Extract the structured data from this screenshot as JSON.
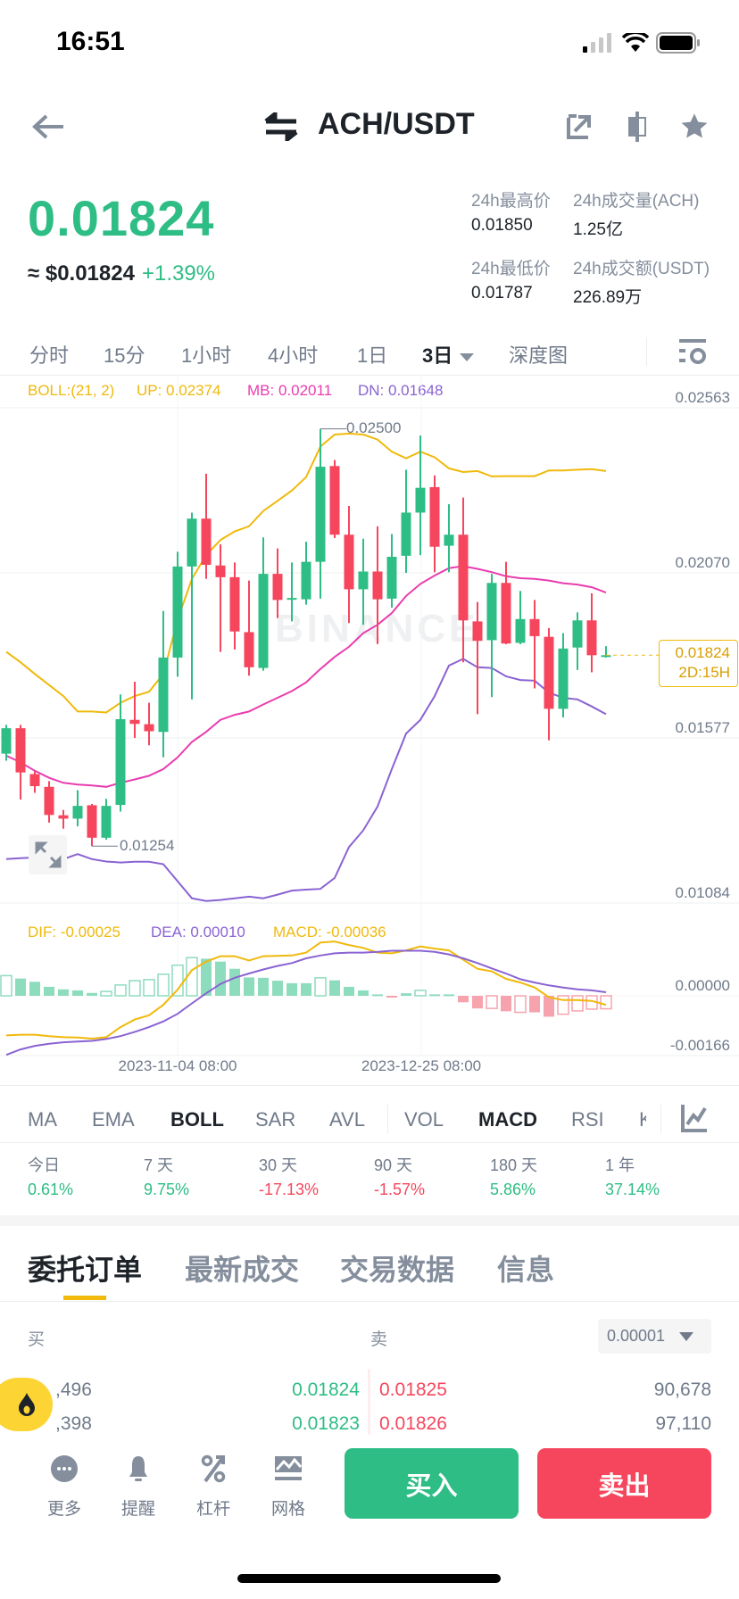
{
  "status_bar": {
    "time": "16:51"
  },
  "header": {
    "title": "ACH/USDT",
    "icons": [
      "back-arrow-icon",
      "swap-icon",
      "share-icon",
      "candle-icon",
      "star-icon"
    ]
  },
  "ticker": {
    "last_price": "0.01824",
    "usd_price": "≈ $0.01824",
    "change": "+1.39%",
    "stats": [
      {
        "label": "24h最高价",
        "value": "0.01850"
      },
      {
        "label": "24h成交量(ACH)",
        "value": "1.25亿"
      },
      {
        "label": "24h最低价",
        "value": "0.01787"
      },
      {
        "label": "24h成交额(USDT)",
        "value": "226.89万"
      }
    ]
  },
  "intervals": {
    "items": [
      "分时",
      "15分",
      "1小时",
      "4小时",
      "1日",
      "3日",
      "深度图"
    ],
    "active": "3日"
  },
  "colors": {
    "up": "#2EBD85",
    "down": "#F6465D",
    "boll_up": "#F0B90B",
    "boll_mb": "#E93CB0",
    "boll_dn": "#8A63D2",
    "accent": "#FCD535"
  },
  "chart_data": [
    {
      "type": "candlestick",
      "title": "",
      "legend": {
        "boll": "BOLL:(21, 2)",
        "up": "UP: 0.02374",
        "mb": "MB: 0.02011",
        "dn": "DN: 0.01648"
      },
      "y_ticks": [
        "0.02563",
        "0.02070",
        "0.01577",
        "0.01084"
      ],
      "ylim": [
        0.01084,
        0.02563
      ],
      "x_ticks": [
        "2023-11-04 08:00",
        "2023-12-25 08:00"
      ],
      "high_label": "0.02500",
      "low_label": "0.01254",
      "last_price_tag": "0.01824",
      "countdown": "2D:15H",
      "watermark": "BINANCE",
      "ohlc": [
        [
          0.0153,
          0.01616,
          0.01509,
          0.01606
        ],
        [
          0.01606,
          0.01616,
          0.01393,
          0.01474
        ],
        [
          0.01469,
          0.01479,
          0.01413,
          0.01433
        ],
        [
          0.01431,
          0.01448,
          0.01324,
          0.01347
        ],
        [
          0.01346,
          0.01362,
          0.01306,
          0.01336
        ],
        [
          0.01336,
          0.01421,
          0.01313,
          0.01374
        ],
        [
          0.01376,
          0.0138,
          0.01254,
          0.01279
        ],
        [
          0.01279,
          0.01395,
          0.01273,
          0.01374
        ],
        [
          0.01377,
          0.01707,
          0.01357,
          0.01633
        ],
        [
          0.01631,
          0.01745,
          0.01577,
          0.01619
        ],
        [
          0.01618,
          0.01682,
          0.01555,
          0.01597
        ],
        [
          0.01595,
          0.01956,
          0.01519,
          0.01817
        ],
        [
          0.01817,
          0.02133,
          0.0176,
          0.02089
        ],
        [
          0.02089,
          0.0225,
          0.01692,
          0.02232
        ],
        [
          0.02232,
          0.02366,
          0.02052,
          0.02094
        ],
        [
          0.02092,
          0.02155,
          0.01834,
          0.02057
        ],
        [
          0.02057,
          0.02101,
          0.01841,
          0.01895
        ],
        [
          0.01893,
          0.02047,
          0.01763,
          0.01788
        ],
        [
          0.01786,
          0.02176,
          0.01778,
          0.02067
        ],
        [
          0.02067,
          0.02143,
          0.01935,
          0.01989
        ],
        [
          0.01991,
          0.02101,
          0.01925,
          0.01995
        ],
        [
          0.01991,
          0.02163,
          0.01975,
          0.02103
        ],
        [
          0.02103,
          0.025,
          0.01993,
          0.02387
        ],
        [
          0.02389,
          0.02407,
          0.02174,
          0.02184
        ],
        [
          0.02184,
          0.0227,
          0.0192,
          0.02021
        ],
        [
          0.02021,
          0.02172,
          0.01915,
          0.02074
        ],
        [
          0.02074,
          0.02209,
          0.01857,
          0.01991
        ],
        [
          0.01993,
          0.02186,
          0.01966,
          0.02118
        ],
        [
          0.02121,
          0.02378,
          0.0207,
          0.0225
        ],
        [
          0.0225,
          0.0248,
          0.02123,
          0.02324
        ],
        [
          0.02326,
          0.02361,
          0.02072,
          0.02148
        ],
        [
          0.02151,
          0.02275,
          0.02072,
          0.02184
        ],
        [
          0.02184,
          0.02295,
          0.01803,
          0.01928
        ],
        [
          0.01925,
          0.01983,
          0.01648,
          0.01867
        ],
        [
          0.01869,
          0.02067,
          0.01699,
          0.0204
        ],
        [
          0.0204,
          0.02103,
          0.01857,
          0.01859
        ],
        [
          0.01861,
          0.02016,
          0.01857,
          0.01932
        ],
        [
          0.01932,
          0.01989,
          0.01725,
          0.01881
        ],
        [
          0.01879,
          0.01905,
          0.0157,
          0.01664
        ],
        [
          0.01664,
          0.0189,
          0.01638,
          0.01844
        ],
        [
          0.01847,
          0.01952,
          0.0178,
          0.01928
        ],
        [
          0.01928,
          0.02009,
          0.01773,
          0.01824
        ],
        [
          0.01822,
          0.01851,
          0.01817,
          0.01824
        ]
      ],
      "boll_up": [
        0.01834,
        0.01803,
        0.01768,
        0.01735,
        0.01702,
        0.01656,
        0.01656,
        0.01653,
        0.01682,
        0.01702,
        0.01715,
        0.01768,
        0.0193,
        0.02052,
        0.02123,
        0.02168,
        0.02194,
        0.02209,
        0.02255,
        0.02285,
        0.02316,
        0.02356,
        0.02447,
        0.02483,
        0.02486,
        0.02483,
        0.02468,
        0.02432,
        0.02412,
        0.02432,
        0.02415,
        0.02382,
        0.02371,
        0.02374,
        0.02358,
        0.02359,
        0.02359,
        0.02359,
        0.02376,
        0.02376,
        0.02378,
        0.0238,
        0.02374
      ],
      "boll_mb": [
        0.01524,
        0.01504,
        0.01479,
        0.01458,
        0.01443,
        0.01438,
        0.01435,
        0.01431,
        0.01443,
        0.01453,
        0.01464,
        0.01484,
        0.01519,
        0.01565,
        0.01595,
        0.01631,
        0.01646,
        0.01656,
        0.01677,
        0.01697,
        0.01717,
        0.01743,
        0.01783,
        0.01819,
        0.01849,
        0.0189,
        0.01915,
        0.0195,
        0.02001,
        0.02037,
        0.02062,
        0.02084,
        0.0209,
        0.02082,
        0.02072,
        0.0206,
        0.02054,
        0.02052,
        0.02047,
        0.02039,
        0.02035,
        0.02027,
        0.02011
      ],
      "boll_dn": [
        0.01215,
        0.01218,
        0.0122,
        0.0122,
        0.01215,
        0.0123,
        0.01215,
        0.01208,
        0.01205,
        0.01207,
        0.01207,
        0.012,
        0.01149,
        0.01098,
        0.0109,
        0.01093,
        0.01098,
        0.01103,
        0.01098,
        0.01109,
        0.01121,
        0.01124,
        0.01126,
        0.01159,
        0.01251,
        0.01301,
        0.01372,
        0.01484,
        0.0159,
        0.01631,
        0.01702,
        0.01793,
        0.01813,
        0.01788,
        0.01786,
        0.01761,
        0.0175,
        0.01748,
        0.01712,
        0.01697,
        0.01692,
        0.01671,
        0.01648
      ]
    },
    {
      "type": "macd",
      "legend": {
        "dif": "DIF: -0.00025",
        "dea": "DEA: 0.00010",
        "macd": "MACD: -0.00036"
      },
      "y_ticks": [
        "0.00000",
        "-0.00166"
      ],
      "hist": [
        0.00056,
        0.00048,
        0.00039,
        0.00025,
        0.00018,
        0.00015,
        8e-05,
        0.00012,
        0.0003,
        0.00042,
        0.00045,
        0.0006,
        0.00085,
        0.00106,
        0.00103,
        0.00095,
        0.00075,
        0.00051,
        0.0005,
        0.00042,
        0.00035,
        0.00035,
        0.0005,
        0.00043,
        0.00025,
        0.00015,
        4e-05,
        -3e-05,
        7e-05,
        0.00015,
        4e-05,
        4e-05,
        -0.00018,
        -0.00035,
        -0.00035,
        -0.00043,
        -0.00046,
        -0.00046,
        -0.00058,
        -0.00051,
        -0.00042,
        -0.00037,
        -0.00036
      ],
      "hist_hollow": [
        1,
        0,
        0,
        0,
        0,
        0,
        0,
        1,
        1,
        1,
        1,
        1,
        1,
        1,
        0,
        0,
        0,
        0,
        0,
        0,
        0,
        0,
        1,
        0,
        0,
        0,
        0,
        0,
        0,
        1,
        0,
        0,
        0,
        0,
        1,
        0,
        1,
        0,
        0,
        1,
        1,
        1,
        1
      ],
      "dif": [
        -0.0011,
        -0.00108,
        -0.00108,
        -0.00112,
        -0.00115,
        -0.00116,
        -0.00119,
        -0.00115,
        -0.00087,
        -0.00066,
        -0.00054,
        -0.00025,
        0.00017,
        0.00071,
        0.00095,
        0.0011,
        0.0011,
        0.00098,
        0.0011,
        0.00111,
        0.00112,
        0.0012,
        0.00148,
        0.00151,
        0.00141,
        0.00133,
        0.0012,
        0.00118,
        0.00126,
        0.00137,
        0.00131,
        0.00126,
        0.001,
        0.00075,
        0.00068,
        0.00047,
        0.00037,
        0.00023,
        -4e-05,
        -0.00012,
        -0.00012,
        -0.00014,
        -0.00025
      ],
      "dea": [
        -0.00164,
        -0.00149,
        -0.00139,
        -0.00133,
        -0.00129,
        -0.00127,
        -0.00125,
        -0.0012,
        -0.00112,
        -0.001,
        -0.00087,
        -0.00071,
        -0.0005,
        -0.00021,
        7e-05,
        0.00033,
        0.0005,
        0.00062,
        0.00073,
        0.00083,
        0.00091,
        0.00104,
        0.00112,
        0.00118,
        0.0012,
        0.0012,
        0.00122,
        0.00125,
        0.00125,
        0.00125,
        0.00122,
        0.00115,
        0.00104,
        0.00091,
        0.00076,
        0.00062,
        0.00046,
        0.00037,
        0.00029,
        0.00023,
        0.00018,
        0.00015,
        0.0001
      ]
    }
  ],
  "indicators": {
    "items": [
      "MA",
      "EMA",
      "BOLL",
      "SAR",
      "AVL",
      "VOL",
      "MACD",
      "RSI",
      "K"
    ],
    "active": [
      "BOLL",
      "MACD"
    ]
  },
  "performance": [
    {
      "label": "今日",
      "value": "0.61%",
      "dir": "up"
    },
    {
      "label": "7 天",
      "value": "9.75%",
      "dir": "up"
    },
    {
      "label": "30 天",
      "value": "-17.13%",
      "dir": "down"
    },
    {
      "label": "90 天",
      "value": "-1.57%",
      "dir": "down"
    },
    {
      "label": "180 天",
      "value": "5.86%",
      "dir": "up"
    },
    {
      "label": "1 年",
      "value": "37.14%",
      "dir": "up"
    }
  ],
  "tabs": {
    "items": [
      "委托订单",
      "最新成交",
      "交易数据",
      "信息"
    ],
    "active": "委托订单"
  },
  "orderbook": {
    "buy_label": "买",
    "sell_label": "卖",
    "precision": "0.00001",
    "rows": [
      {
        "bid_qty": ",496",
        "bid": "0.01824",
        "ask": "0.01825",
        "ask_qty": "90,678"
      },
      {
        "bid_qty": ",398",
        "bid": "0.01823",
        "ask": "0.01826",
        "ask_qty": "97,110"
      }
    ]
  },
  "bottom_bar": {
    "items": [
      {
        "label": "更多",
        "icon": "more-icon"
      },
      {
        "label": "提醒",
        "icon": "bell-icon"
      },
      {
        "label": "杠杆",
        "icon": "leverage-icon"
      },
      {
        "label": "网格",
        "icon": "grid-icon"
      }
    ],
    "buy": "买入",
    "sell": "卖出"
  }
}
